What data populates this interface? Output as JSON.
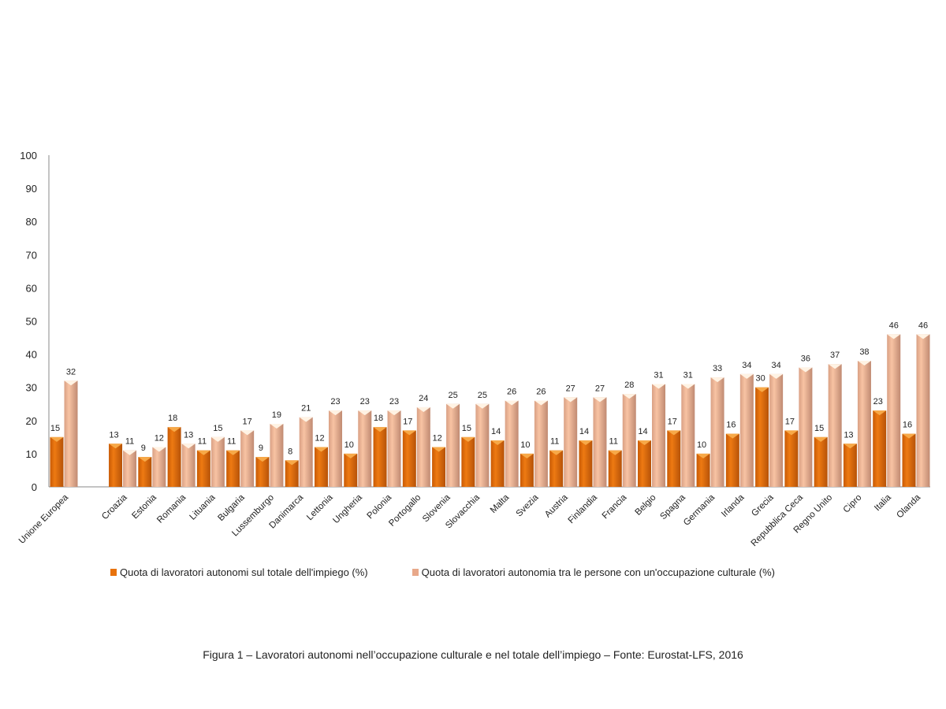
{
  "chart_data": {
    "type": "bar",
    "title": "",
    "xlabel": "",
    "ylabel": "",
    "ylim": [
      0,
      100
    ],
    "yticks": [
      0,
      10,
      20,
      30,
      40,
      50,
      60,
      70,
      80,
      90,
      100
    ],
    "grid": false,
    "legend_position": "bottom",
    "categories": [
      "Unione Europea",
      "",
      "Croazia",
      "Estonia",
      "Romania",
      "Lituania",
      "Bulgaria",
      "Lussemburgo",
      "Danimarca",
      "Lettonia",
      "Ungheria",
      "Polonia",
      "Portogallo",
      "Slovenia",
      "Slovacchia",
      "Malta",
      "Svezia",
      "Austria",
      "Finlandia",
      "Francia",
      "Belgio",
      "Spagna",
      "Germania",
      "Irlanda",
      "Grecia",
      "Repubblica Ceca",
      "Regno Unito",
      "Cipro",
      "Italia",
      "Olanda"
    ],
    "series": [
      {
        "name": "Quota di lavoratori autonomi sul totale dell'impiego (%)",
        "color": "#E8720C",
        "values": [
          15,
          null,
          13,
          9,
          18,
          11,
          11,
          9,
          8,
          12,
          10,
          18,
          17,
          12,
          15,
          14,
          10,
          11,
          14,
          11,
          14,
          17,
          10,
          16,
          30,
          17,
          15,
          13,
          23,
          16
        ]
      },
      {
        "name": "Quota di lavoratori autonomia tra le persone con un'occupazione culturale (%)",
        "color": "#F2B08C",
        "values": [
          32,
          null,
          11,
          12,
          13,
          15,
          17,
          19,
          21,
          23,
          23,
          23,
          24,
          25,
          25,
          26,
          26,
          27,
          27,
          28,
          31,
          31,
          33,
          34,
          34,
          36,
          37,
          38,
          46,
          46
        ]
      }
    ]
  },
  "caption": "Figura 1 – Lavoratori autonomi nell’occupazione culturale e nel totale dell’impiego – Fonte: Eurostat-LFS, 2016"
}
